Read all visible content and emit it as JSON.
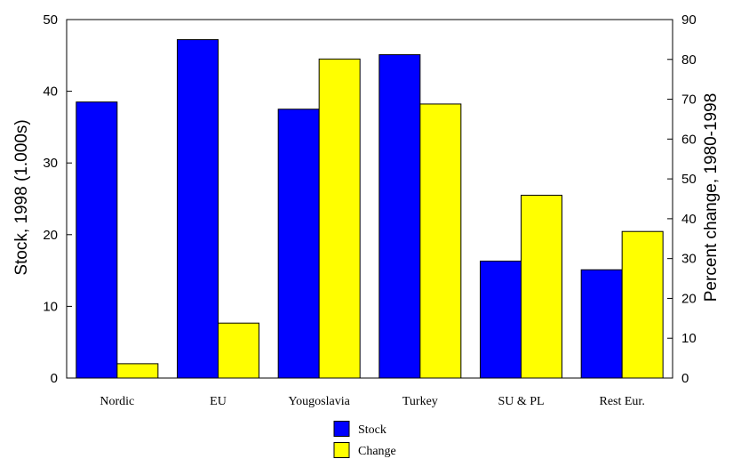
{
  "chart_data": {
    "type": "bar",
    "title": "",
    "categories": [
      "Nordic",
      "EU",
      "Yougoslavia",
      "Turkey",
      "SU & PL",
      "Rest Eur."
    ],
    "series": [
      {
        "name": "Stock",
        "axis": "left",
        "color": "#0000ff",
        "values": [
          38.5,
          47.2,
          37.5,
          45.1,
          16.3,
          15.1
        ]
      },
      {
        "name": "Change",
        "axis": "right",
        "color": "#ffff00",
        "values": [
          3.6,
          13.8,
          80.1,
          68.8,
          45.9,
          36.8
        ]
      }
    ],
    "y_left": {
      "label": "Stock, 1998 (1.000s)",
      "range": [
        0,
        50
      ],
      "ticks": [
        "0",
        "10",
        "20",
        "30",
        "40",
        "50"
      ]
    },
    "y_right": {
      "label": "Percent change, 1980-1998",
      "range": [
        0,
        90
      ],
      "ticks": [
        "0",
        "10",
        "20",
        "30",
        "40",
        "50",
        "60",
        "70",
        "80",
        "90"
      ]
    },
    "grid": false,
    "legend_position": "bottom-center"
  }
}
